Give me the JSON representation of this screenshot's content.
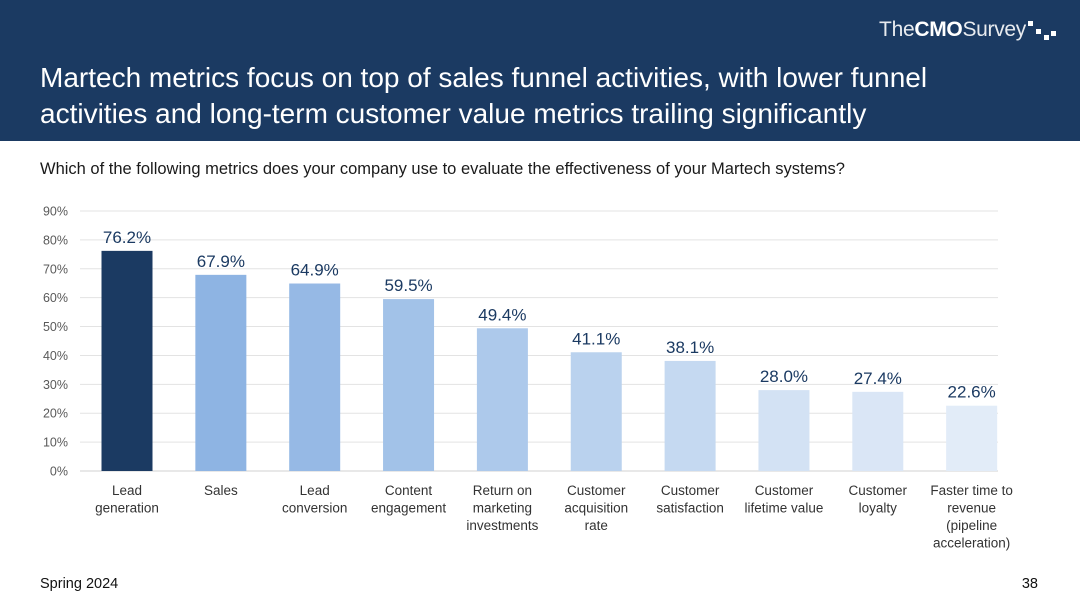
{
  "header": {
    "brand_pre": "The",
    "brand_bold": "CMO",
    "brand_post": "Survey",
    "title": "Martech metrics focus on top of sales funnel activities, with lower funnel activities and long-term customer value metrics trailing significantly"
  },
  "question": "Which of the following metrics does your company use to evaluate the effectiveness of your Martech systems?",
  "footer": {
    "left": "Spring 2024",
    "page": "38"
  },
  "chart_data": {
    "type": "bar",
    "categories": [
      [
        "Lead",
        "generation"
      ],
      [
        "Sales"
      ],
      [
        "Lead",
        "conversion"
      ],
      [
        "Content",
        "engagement"
      ],
      [
        "Return on",
        "marketing",
        "investments"
      ],
      [
        "Customer",
        "acquisition",
        "rate"
      ],
      [
        "Customer",
        "satisfaction"
      ],
      [
        "Customer",
        "lifetime value"
      ],
      [
        "Customer",
        "loyalty"
      ],
      [
        "Faster time to",
        "revenue",
        "(pipeline",
        "acceleration)"
      ]
    ],
    "values": [
      76.2,
      67.9,
      64.9,
      59.5,
      49.4,
      41.1,
      38.1,
      28.0,
      27.4,
      22.6
    ],
    "data_labels": [
      "76.2%",
      "67.9%",
      "64.9%",
      "59.5%",
      "49.4%",
      "41.1%",
      "38.1%",
      "28.0%",
      "27.4%",
      "22.6%"
    ],
    "colors": [
      "#1b3a62",
      "#8eb4e3",
      "#96b9e5",
      "#a2c2e8",
      "#adc9eb",
      "#bad2ee",
      "#c5d9f1",
      "#d3e2f4",
      "#dae6f6",
      "#e2ecf8"
    ],
    "ylim": [
      0,
      90
    ],
    "yticks": [
      "0%",
      "10%",
      "20%",
      "30%",
      "40%",
      "50%",
      "60%",
      "70%",
      "80%",
      "90%"
    ],
    "grid": true,
    "xlabel": "",
    "ylabel": ""
  }
}
